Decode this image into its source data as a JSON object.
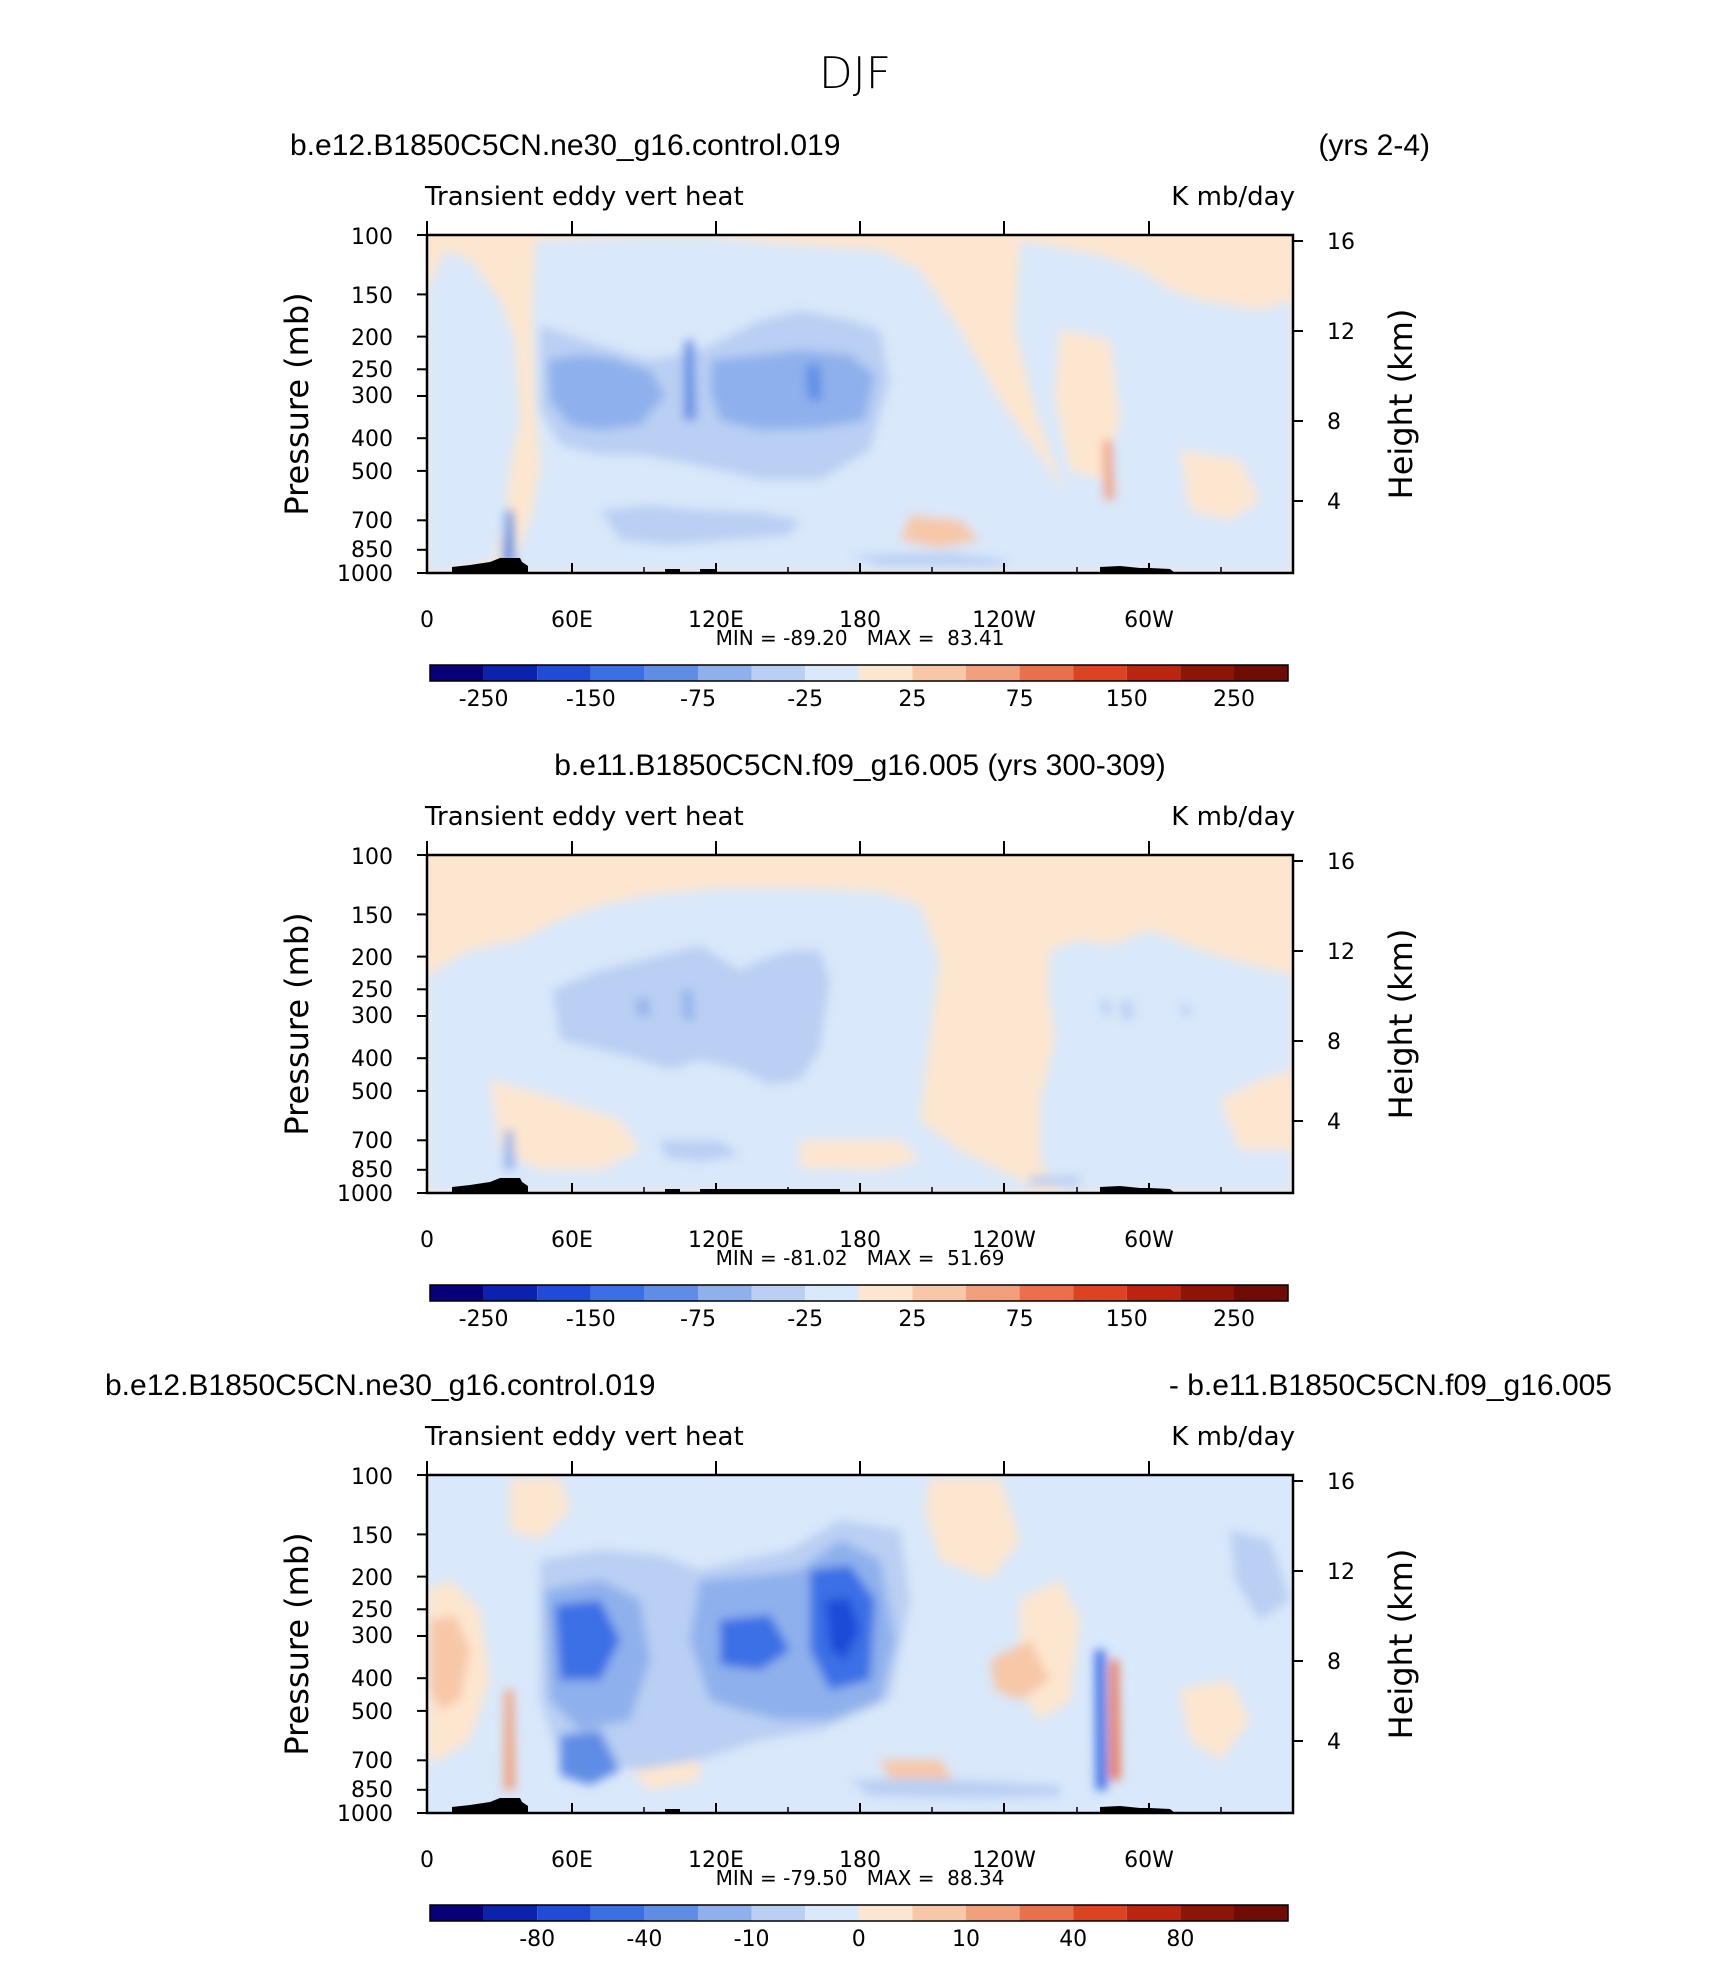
{
  "figure_title": "DJF",
  "chart_data": [
    {
      "type": "heatmap",
      "header_left": "b.e12.B1850C5CN.ne30_g16.control.019",
      "header_right": "(yrs 2-4)",
      "header_center": "",
      "subtitle_left": "Transient eddy vert heat",
      "subtitle_right": "K mb/day",
      "ylabel_left": "Pressure (mb)",
      "ylabel_right": "Height (km)",
      "x_ticks": [
        "0",
        "60E",
        "120E",
        "180",
        "120W",
        "60W"
      ],
      "y_ticks": [
        "100",
        "150",
        "200",
        "250",
        "300",
        "400",
        "500",
        "700",
        "850",
        "1000"
      ],
      "y_right_ticks": [
        "16",
        "12",
        "8",
        "4"
      ],
      "stats": "MIN = -89.20   MAX =  83.41",
      "min": -89.2,
      "max": 83.41,
      "colorbar_labels": [
        "-250",
        "-150",
        "-75",
        "-25",
        "25",
        "75",
        "150",
        "250"
      ]
    },
    {
      "type": "heatmap",
      "header_left": "",
      "header_right": "",
      "header_center": "b.e11.B1850C5CN.f09_g16.005 (yrs 300-309)",
      "subtitle_left": "Transient eddy vert heat",
      "subtitle_right": "K mb/day",
      "ylabel_left": "Pressure (mb)",
      "ylabel_right": "Height (km)",
      "x_ticks": [
        "0",
        "60E",
        "120E",
        "180",
        "120W",
        "60W"
      ],
      "y_ticks": [
        "100",
        "150",
        "200",
        "250",
        "300",
        "400",
        "500",
        "700",
        "850",
        "1000"
      ],
      "y_right_ticks": [
        "16",
        "12",
        "8",
        "4"
      ],
      "stats": "MIN = -81.02   MAX =  51.69",
      "min": -81.02,
      "max": 51.69,
      "colorbar_labels": [
        "-250",
        "-150",
        "-75",
        "-25",
        "25",
        "75",
        "150",
        "250"
      ]
    },
    {
      "type": "heatmap",
      "header_left": "b.e12.B1850C5CN.ne30_g16.control.019",
      "header_right": "- b.e11.B1850C5CN.f09_g16.005",
      "header_center": "",
      "subtitle_left": "Transient eddy vert heat",
      "subtitle_right": "K mb/day",
      "ylabel_left": "Pressure (mb)",
      "ylabel_right": "Height (km)",
      "x_ticks": [
        "0",
        "60E",
        "120E",
        "180",
        "120W",
        "60W"
      ],
      "y_ticks": [
        "100",
        "150",
        "200",
        "250",
        "300",
        "400",
        "500",
        "700",
        "850",
        "1000"
      ],
      "y_right_ticks": [
        "16",
        "12",
        "8",
        "4"
      ],
      "stats": "MIN = -79.50   MAX =  88.34",
      "min": -79.5,
      "max": 88.34,
      "colorbar_labels": [
        "-80",
        "-40",
        "-10",
        "0",
        "10",
        "40",
        "80"
      ]
    }
  ],
  "colors": {
    "palette": [
      "#08007a",
      "#0b21b0",
      "#1f4bd8",
      "#3b6fe6",
      "#5f8de6",
      "#8eb0ec",
      "#b9cff3",
      "#d9e8fa",
      "#fde6cf",
      "#f7c7a8",
      "#f2a07b",
      "#eb6f4a",
      "#dd4321",
      "#bc2410",
      "#8e1408",
      "#6e0c05"
    ],
    "land": "#000000"
  }
}
